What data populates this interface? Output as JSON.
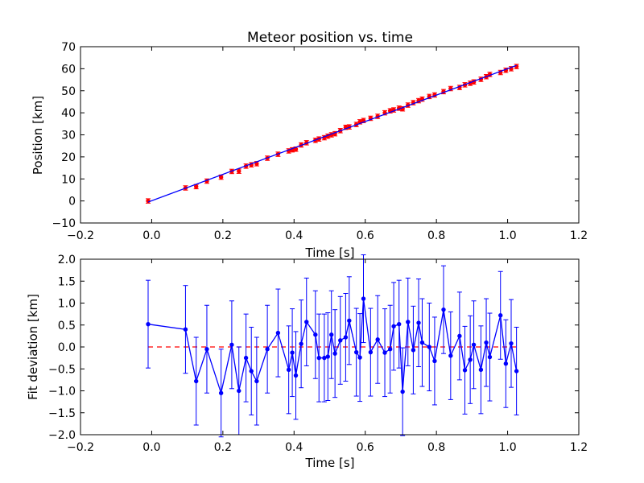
{
  "chart_data": [
    {
      "type": "scatter",
      "title": "Meteor position vs. time",
      "xlabel": "Time [s]",
      "ylabel": "Position [km]",
      "xlim": [
        -0.2,
        1.2
      ],
      "ylim": [
        -10,
        70
      ],
      "xticks": [
        "−0.2",
        "0.0",
        "0.2",
        "0.4",
        "0.6",
        "0.8",
        "1.0",
        "1.2"
      ],
      "yticks": [
        "−10",
        "0",
        "10",
        "20",
        "30",
        "40",
        "50",
        "60",
        "70"
      ],
      "grid": false,
      "series": [
        {
          "kind": "errorbar-points",
          "color": "#ff0000",
          "yerr": 1.0,
          "x": [
            -0.01,
            0.095,
            0.125,
            0.155,
            0.195,
            0.225,
            0.245,
            0.265,
            0.28,
            0.295,
            0.325,
            0.355,
            0.385,
            0.395,
            0.405,
            0.42,
            0.435,
            0.46,
            0.47,
            0.485,
            0.495,
            0.505,
            0.515,
            0.53,
            0.545,
            0.555,
            0.575,
            0.585,
            0.595,
            0.615,
            0.635,
            0.655,
            0.67,
            0.68,
            0.695,
            0.705,
            0.72,
            0.735,
            0.75,
            0.76,
            0.78,
            0.795,
            0.82,
            0.84,
            0.865,
            0.88,
            0.895,
            0.905,
            0.925,
            0.94,
            0.95,
            0.98,
            0.995,
            1.01,
            1.025
          ],
          "y": [
            0,
            5.9,
            6.5,
            9,
            10.8,
            13.4,
            13.5,
            15.8,
            16.4,
            16.9,
            19.4,
            21.2,
            22.7,
            23.2,
            23.5,
            25.4,
            26.4,
            27.5,
            28.1,
            28.7,
            29.4,
            30,
            30.5,
            31.9,
            33.4,
            33.6,
            34.7,
            35.9,
            36.5,
            37.5,
            38.4,
            40,
            40.9,
            41.3,
            42.1,
            41.8,
            43.5,
            44.6,
            45.5,
            46.2,
            47.4,
            48.1,
            49.6,
            51,
            51.5,
            52.7,
            53.4,
            54,
            55.2,
            56.4,
            57.4,
            58.3,
            59.3,
            60,
            61
          ]
        },
        {
          "kind": "fit-line",
          "color": "#0000ff",
          "x": [
            -0.01,
            1.025
          ],
          "y": [
            -0.5,
            61.5
          ]
        }
      ]
    },
    {
      "type": "line",
      "title": "",
      "xlabel": "Time [s]",
      "ylabel": "Fit deviation [km]",
      "xlim": [
        -0.2,
        1.2
      ],
      "ylim": [
        -2.0,
        2.0
      ],
      "xticks": [
        "−0.2",
        "0.0",
        "0.2",
        "0.4",
        "0.6",
        "0.8",
        "1.0",
        "1.2"
      ],
      "yticks": [
        "−2.0",
        "−1.5",
        "−1.0",
        "−0.5",
        "0.0",
        "0.5",
        "1.0",
        "1.5",
        "2.0"
      ],
      "grid": false,
      "reference_line": {
        "y": 0,
        "color": "#ff0000",
        "style": "dashed"
      },
      "series": [
        {
          "kind": "errorbar-line",
          "color": "#0000ff",
          "yerr": 1.0,
          "x": [
            -0.01,
            0.095,
            0.125,
            0.155,
            0.195,
            0.225,
            0.245,
            0.265,
            0.28,
            0.295,
            0.325,
            0.355,
            0.385,
            0.395,
            0.405,
            0.42,
            0.435,
            0.46,
            0.47,
            0.485,
            0.495,
            0.505,
            0.515,
            0.53,
            0.545,
            0.555,
            0.575,
            0.585,
            0.595,
            0.615,
            0.635,
            0.655,
            0.67,
            0.68,
            0.695,
            0.705,
            0.72,
            0.735,
            0.75,
            0.76,
            0.78,
            0.795,
            0.82,
            0.84,
            0.865,
            0.88,
            0.895,
            0.905,
            0.925,
            0.94,
            0.95,
            0.98,
            0.995,
            1.01,
            1.025
          ],
          "y": [
            0.52,
            0.4,
            -0.78,
            -0.05,
            -1.05,
            0.05,
            -1.0,
            -0.25,
            -0.55,
            -0.78,
            -0.05,
            0.32,
            -0.52,
            -0.13,
            -0.65,
            0.07,
            0.57,
            0.28,
            -0.25,
            -0.25,
            -0.22,
            0.28,
            -0.15,
            0.15,
            0.22,
            0.6,
            -0.12,
            -0.24,
            1.1,
            -0.12,
            0.17,
            -0.13,
            -0.05,
            0.47,
            0.52,
            -1.02,
            0.57,
            -0.07,
            0.55,
            0.1,
            0.0,
            -0.32,
            0.85,
            -0.2,
            0.25,
            -0.53,
            -0.29,
            0.05,
            -0.52,
            0.1,
            -0.23,
            0.72,
            -0.38,
            0.08,
            -0.55
          ]
        }
      ]
    }
  ]
}
